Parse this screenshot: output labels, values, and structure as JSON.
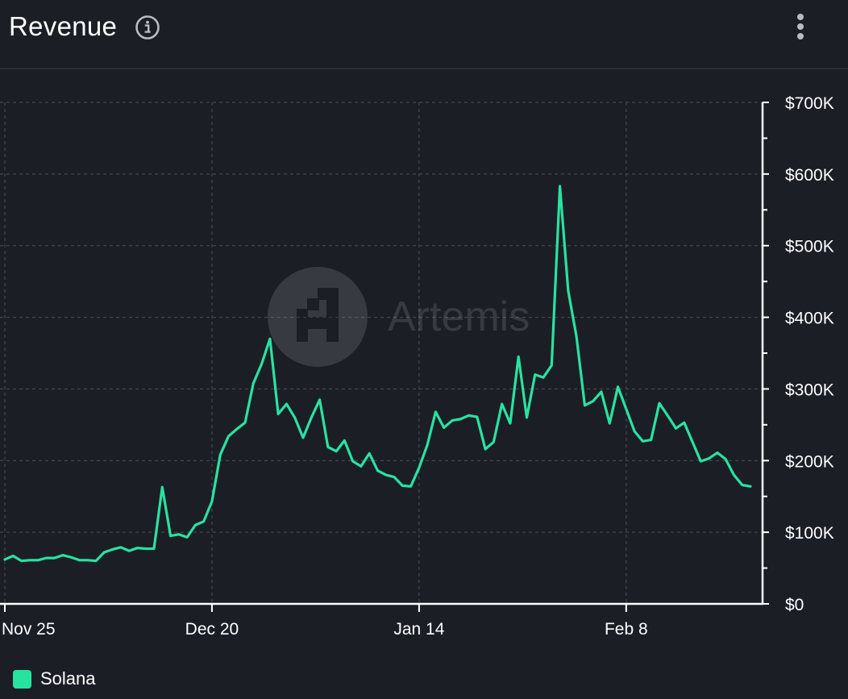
{
  "header": {
    "title": "Revenue",
    "info_icon": "info-icon",
    "menu_icon": "more-vertical-icon"
  },
  "watermark": {
    "text": "Artemis",
    "icon": "artemis-logo-icon"
  },
  "legend": {
    "label": "Solana",
    "color": "#28e3a0"
  },
  "colors": {
    "background": "#1c1e26",
    "line": "#28e3a0",
    "grid": "#4a4f5a",
    "axis": "#ffffff"
  },
  "chart_data": {
    "type": "line",
    "title": "Revenue",
    "xlabel": "",
    "ylabel": "",
    "x_ticks": [
      "Nov 25",
      "Dec 20",
      "Jan 14",
      "Feb 8"
    ],
    "x_tick_index": [
      0,
      25,
      50,
      75
    ],
    "y_ticks": [
      "$0",
      "$100K",
      "$200K",
      "$300K",
      "$400K",
      "$500K",
      "$600K",
      "$700K"
    ],
    "ylim": [
      0,
      700000
    ],
    "y_axis_position": "right",
    "grid": true,
    "legend_position": "bottom-left",
    "series": [
      {
        "name": "Solana",
        "values": [
          62000,
          67000,
          60000,
          61000,
          61000,
          64000,
          64000,
          68000,
          65000,
          61000,
          61000,
          60000,
          72000,
          76000,
          79000,
          74000,
          78000,
          77000,
          77000,
          163000,
          95000,
          97000,
          93000,
          110000,
          115000,
          143000,
          208000,
          234000,
          244000,
          253000,
          308000,
          335000,
          370000,
          265000,
          279000,
          260000,
          232000,
          260000,
          285000,
          219000,
          213000,
          228000,
          199000,
          192000,
          210000,
          186000,
          180000,
          177000,
          165000,
          164000,
          190000,
          222000,
          268000,
          246000,
          256000,
          258000,
          263000,
          261000,
          216000,
          226000,
          279000,
          252000,
          345000,
          260000,
          320000,
          316000,
          333000,
          583000,
          437000,
          373000,
          277000,
          283000,
          296000,
          252000,
          303000,
          272000,
          241000,
          227000,
          229000,
          280000,
          263000,
          245000,
          253000,
          226000,
          199000,
          203000,
          211000,
          202000,
          180000,
          166000,
          164000
        ]
      }
    ]
  }
}
